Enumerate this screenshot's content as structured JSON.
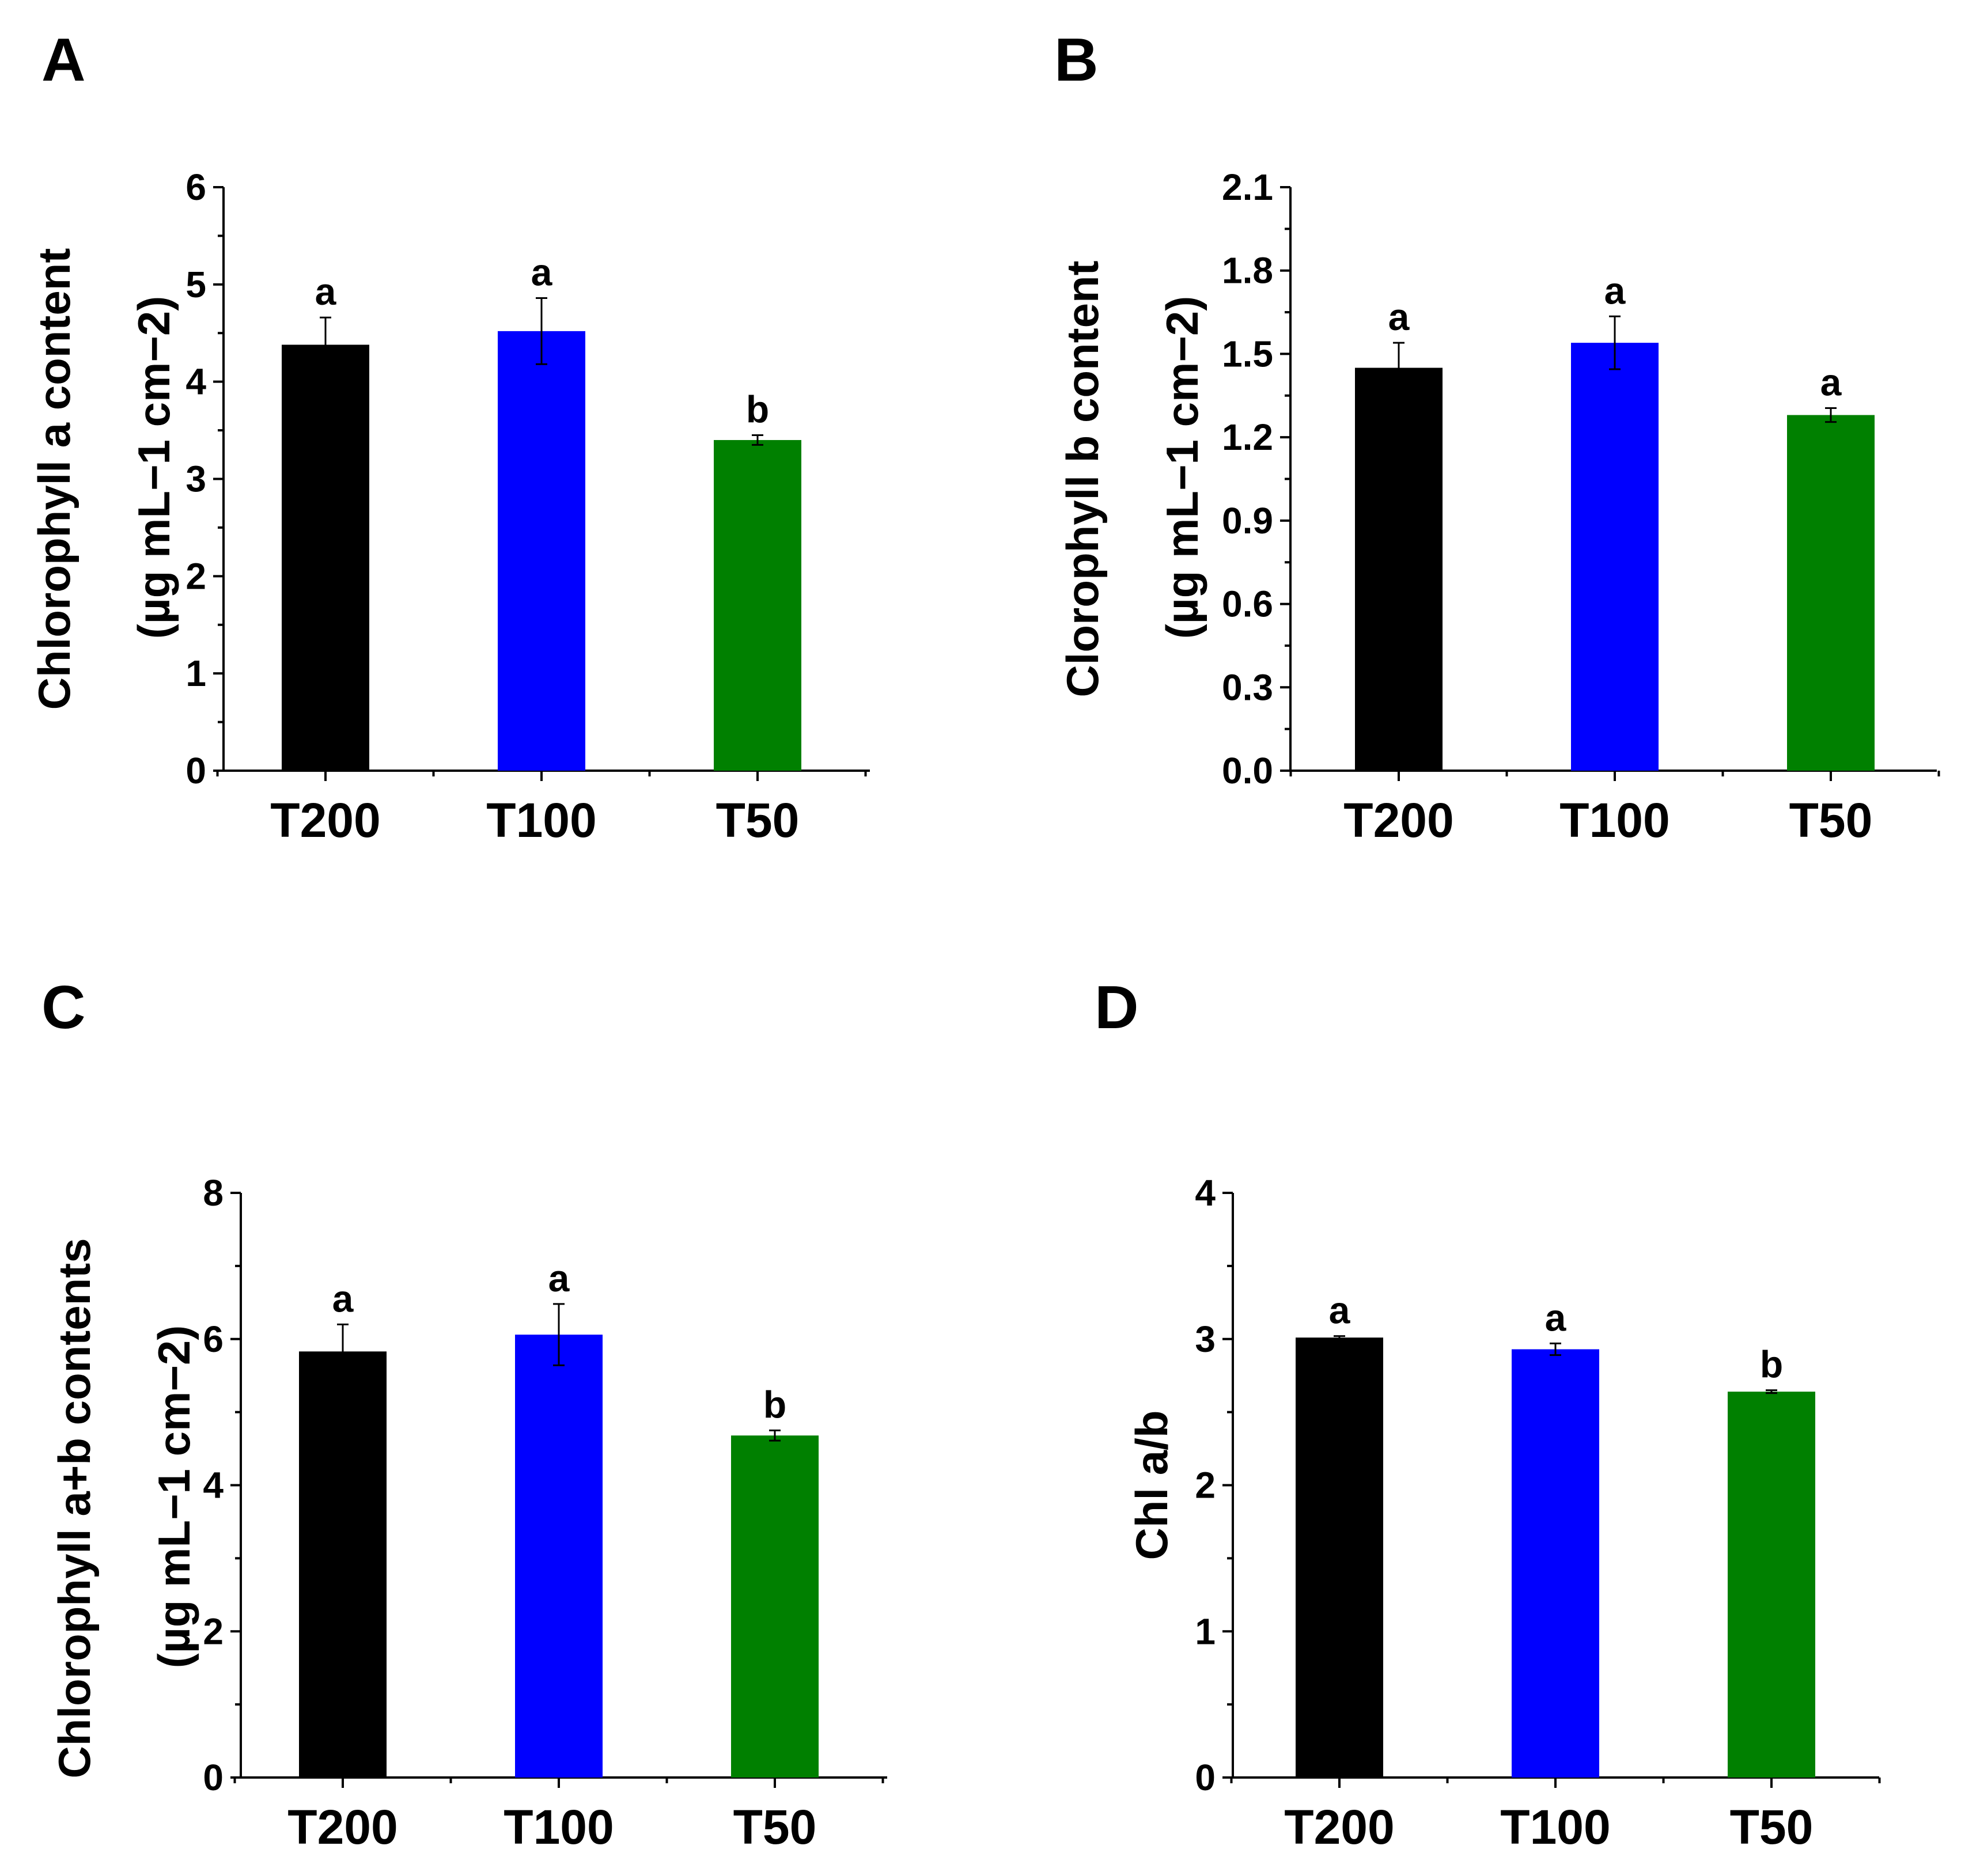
{
  "chart_data": [
    {
      "type": "bar",
      "panel": "A",
      "categories": [
        "T200",
        "T100",
        "T50"
      ],
      "values": [
        4.38,
        4.52,
        3.4
      ],
      "errors": [
        0.28,
        0.34,
        0.05
      ],
      "significance": [
        "a",
        "a",
        "b"
      ],
      "colors": [
        "#000000",
        "#0000ff",
        "#008000"
      ],
      "ylim": [
        0,
        6
      ],
      "yticks": [
        "0",
        "1",
        "2",
        "3",
        "4",
        "5",
        "6"
      ],
      "ylabel_line1": "Chlorophyll a content",
      "ylabel_line2": "(µg mL−1 cm−2)"
    },
    {
      "type": "bar",
      "panel": "B",
      "categories": [
        "T200",
        "T100",
        "T50"
      ],
      "values": [
        1.45,
        1.54,
        1.28
      ],
      "errors": [
        0.09,
        0.095,
        0.025
      ],
      "significance": [
        "a",
        "a",
        "a"
      ],
      "colors": [
        "#000000",
        "#0000ff",
        "#008000"
      ],
      "ylim": [
        0,
        2.1
      ],
      "yticks": [
        "0.0",
        "0.3",
        "0.6",
        "0.9",
        "1.2",
        "1.5",
        "1.8",
        "2.1"
      ],
      "ylabel_line1": "Clorophyll b content",
      "ylabel_line2": "(µg mL−1 cm−2)"
    },
    {
      "type": "bar",
      "panel": "C",
      "categories": [
        "T200",
        "T100",
        "T50"
      ],
      "values": [
        5.83,
        6.06,
        4.68
      ],
      "errors": [
        0.37,
        0.42,
        0.07
      ],
      "significance": [
        "a",
        "a",
        "b"
      ],
      "colors": [
        "#000000",
        "#0000ff",
        "#008000"
      ],
      "ylim": [
        0,
        8
      ],
      "yticks": [
        "0",
        "2",
        "4",
        "6",
        "8"
      ],
      "ylabel_line1": "Chlorophyll a+b contents",
      "ylabel_line2": "(µg mL−1 cm−2)"
    },
    {
      "type": "bar",
      "panel": "D",
      "categories": [
        "T200",
        "T100",
        "T50"
      ],
      "values": [
        3.01,
        2.93,
        2.64
      ],
      "errors": [
        0.01,
        0.04,
        0.01
      ],
      "significance": [
        "a",
        "a",
        "b"
      ],
      "colors": [
        "#000000",
        "#0000ff",
        "#008000"
      ],
      "ylim": [
        0,
        4
      ],
      "yticks": [
        "0",
        "1",
        "2",
        "3",
        "4"
      ],
      "ylabel_line1": "Chl a/b",
      "ylabel_line2": ""
    }
  ]
}
